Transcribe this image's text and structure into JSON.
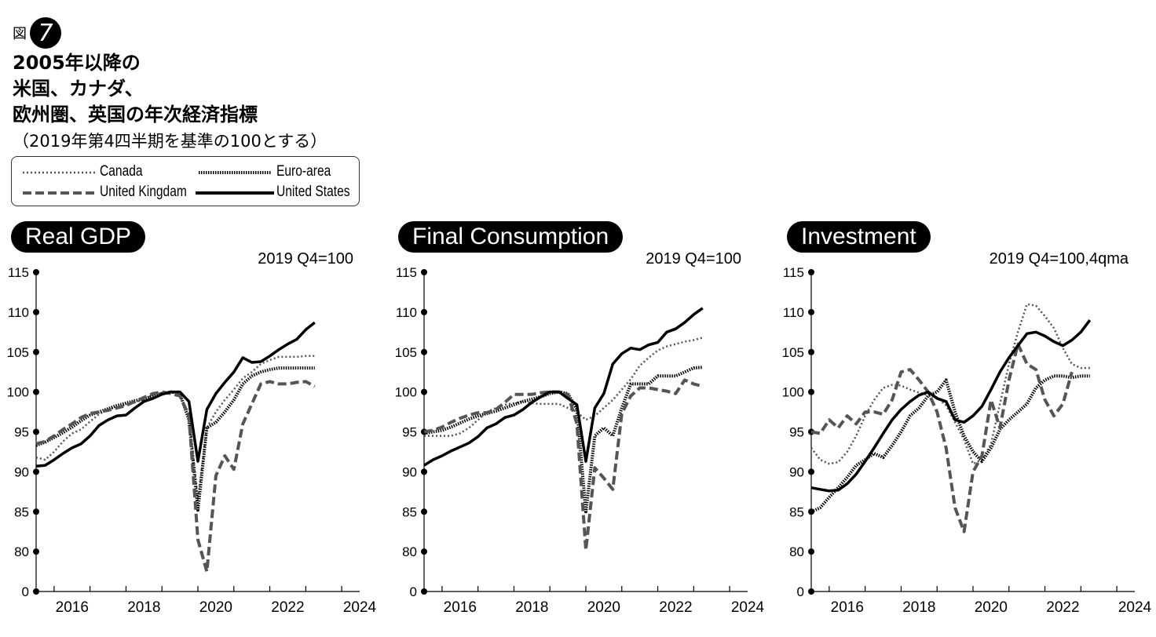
{
  "figure": {
    "prefix": "図",
    "number": "7",
    "title_lines": [
      "2005年以降の",
      "米国、カナダ、",
      "欧州圏、英国の年次経済指標"
    ],
    "subtitle": "（2019年第4四半期を基準の100とする）"
  },
  "legend": [
    {
      "name": "Canada",
      "style": "dotted",
      "color": "#555555"
    },
    {
      "name": "Euro-area",
      "style": "dense-dotted",
      "color": "#000000"
    },
    {
      "name": "United Kingdam",
      "style": "dashed",
      "color": "#555555"
    },
    {
      "name": "United States",
      "style": "solid",
      "color": "#000000"
    }
  ],
  "chart_data": [
    {
      "type": "line",
      "title": "Real GDP",
      "note": "2019 Q4=100",
      "ylim": [
        0,
        115
      ],
      "yticks": [
        0,
        80,
        85,
        90,
        95,
        100,
        105,
        110,
        115
      ],
      "xticks": [
        "2016",
        "2018",
        "2020",
        "2022",
        "2024"
      ],
      "xlim": [
        2015.5,
        2024.5
      ],
      "series": [
        {
          "name": "United States",
          "x": [
            2015.5,
            2015.75,
            2016,
            2016.25,
            2016.5,
            2016.75,
            2017,
            2017.25,
            2017.5,
            2017.75,
            2018,
            2018.25,
            2018.5,
            2018.75,
            2019,
            2019.25,
            2019.5,
            2019.75,
            2020,
            2020.25,
            2020.5,
            2020.75,
            2021,
            2021.25,
            2021.5,
            2021.75,
            2022,
            2022.25,
            2022.5,
            2022.75,
            2023,
            2023.25,
            2023.5,
            2023.75,
            2024,
            2024.25
          ],
          "values": [
            90.7,
            90.8,
            91.5,
            92.3,
            93,
            93.5,
            94.5,
            95.8,
            96.5,
            97,
            97.1,
            98,
            98.8,
            99.2,
            99.7,
            100,
            100,
            98.8,
            91.3,
            97.8,
            99.8,
            101.2,
            102.5,
            104.3,
            103.7,
            103.8,
            104.5,
            105.3,
            106,
            106.6,
            107.8,
            108.7,
            null,
            null,
            null,
            null
          ]
        },
        {
          "name": "Canada",
          "x": [
            2015.5,
            2015.75,
            2016,
            2016.25,
            2016.5,
            2016.75,
            2017,
            2017.25,
            2017.5,
            2017.75,
            2018,
            2018.25,
            2018.5,
            2018.75,
            2019,
            2019.25,
            2019.5,
            2019.75,
            2020,
            2020.25,
            2020.5,
            2020.75,
            2021,
            2021.25,
            2021.5,
            2021.75,
            2022,
            2022.25,
            2022.5,
            2022.75,
            2023,
            2023.25,
            2023.5,
            2023.75,
            2024,
            2024.25
          ],
          "values": [
            91.8,
            91.5,
            92.5,
            93.8,
            94.8,
            95.3,
            96.3,
            97.2,
            97.8,
            98.1,
            98.4,
            98.7,
            99.1,
            99.6,
            99.9,
            100,
            99.5,
            97.3,
            86.5,
            95.5,
            97.5,
            99,
            100.3,
            101.7,
            102.5,
            103.5,
            104,
            104.4,
            104.4,
            104.4,
            104.5,
            104.5,
            null,
            null,
            null,
            null
          ]
        },
        {
          "name": "Euro-area",
          "x": [
            2015.5,
            2015.75,
            2016,
            2016.25,
            2016.5,
            2016.75,
            2017,
            2017.25,
            2017.5,
            2017.75,
            2018,
            2018.25,
            2018.5,
            2018.75,
            2019,
            2019.25,
            2019.5,
            2019.75,
            2020,
            2020.25,
            2020.5,
            2020.75,
            2021,
            2021.25,
            2021.5,
            2021.75,
            2022,
            2022.25,
            2022.5,
            2022.75,
            2023,
            2023.25,
            2023.5,
            2023.75,
            2024,
            2024.25
          ],
          "values": [
            93.3,
            93.7,
            94.3,
            94.9,
            95.6,
            96.4,
            97.1,
            97.5,
            97.9,
            98.3,
            98.6,
            98.9,
            99.1,
            99.5,
            99.8,
            100,
            99.8,
            96.5,
            85.2,
            95.5,
            96.2,
            97.5,
            99,
            101,
            102,
            102.5,
            102.8,
            103,
            103,
            103,
            103,
            103,
            null,
            null,
            null,
            null
          ]
        },
        {
          "name": "United Kingdam",
          "x": [
            2015.5,
            2015.75,
            2016,
            2016.25,
            2016.5,
            2016.75,
            2017,
            2017.25,
            2017.5,
            2017.75,
            2018,
            2018.25,
            2018.5,
            2018.75,
            2019,
            2019.25,
            2019.5,
            2019.75,
            2020,
            2020.25,
            2020.5,
            2020.75,
            2021,
            2021.25,
            2021.5,
            2021.75,
            2022,
            2022.25,
            2022.5,
            2022.75,
            2023,
            2023.25,
            2023.5,
            2023.75,
            2024,
            2024.25
          ],
          "values": [
            93.5,
            93.8,
            94.5,
            95.3,
            96,
            96.8,
            97.3,
            97.5,
            97.7,
            98,
            98.3,
            98.8,
            99.3,
            99.8,
            100,
            99.8,
            99.5,
            97,
            81.5,
            77.5,
            89.5,
            92,
            90.3,
            96,
            98.5,
            101,
            101.3,
            101,
            101,
            101.2,
            101.3,
            100.7,
            null,
            null,
            null,
            null
          ]
        }
      ]
    },
    {
      "type": "line",
      "title": "Final Consumption",
      "note": "2019 Q4=100",
      "ylim": [
        0,
        115
      ],
      "yticks": [
        0,
        80,
        85,
        90,
        95,
        100,
        105,
        110,
        115
      ],
      "xticks": [
        "2016",
        "2018",
        "2020",
        "2022",
        "2024"
      ],
      "xlim": [
        2015.5,
        2024.5
      ],
      "series": [
        {
          "name": "United States",
          "x": [
            2015.5,
            2015.75,
            2016,
            2016.25,
            2016.5,
            2016.75,
            2017,
            2017.25,
            2017.5,
            2017.75,
            2018,
            2018.25,
            2018.5,
            2018.75,
            2019,
            2019.25,
            2019.5,
            2019.75,
            2020,
            2020.25,
            2020.5,
            2020.75,
            2021,
            2021.25,
            2021.5,
            2021.75,
            2022,
            2022.25,
            2022.5,
            2022.75,
            2023,
            2023.25,
            2023.5,
            2023.75,
            2024,
            2024.25
          ],
          "values": [
            90.8,
            91.5,
            92,
            92.6,
            93.1,
            93.6,
            94.4,
            95.5,
            96,
            96.8,
            97.1,
            97.8,
            98.7,
            99.4,
            100,
            100,
            99.2,
            98.4,
            91.3,
            98,
            99.8,
            103.5,
            104.8,
            105.5,
            105.3,
            105.9,
            106.2,
            107.5,
            107.9,
            108.7,
            109.7,
            110.5,
            null,
            null,
            null,
            null
          ]
        },
        {
          "name": "Canada",
          "x": [
            2015.5,
            2015.75,
            2016,
            2016.25,
            2016.5,
            2016.75,
            2017,
            2017.25,
            2017.5,
            2017.75,
            2018,
            2018.25,
            2018.5,
            2018.75,
            2019,
            2019.25,
            2019.5,
            2019.75,
            2020,
            2020.25,
            2020.5,
            2020.75,
            2021,
            2021.25,
            2021.5,
            2021.75,
            2022,
            2022.25,
            2022.5,
            2022.75,
            2023,
            2023.25,
            2023.5,
            2023.75,
            2024,
            2024.25
          ],
          "values": [
            94.5,
            94.5,
            94.5,
            94.5,
            94.8,
            95.5,
            96.5,
            97.5,
            98,
            98.4,
            98.6,
            98.8,
            98.6,
            98.5,
            98.5,
            98.5,
            98,
            97.5,
            96.5,
            97,
            98,
            99,
            100.3,
            101.6,
            103.3,
            104.3,
            105.2,
            105.7,
            106,
            106.3,
            106.5,
            106.8,
            null,
            null,
            null,
            null
          ]
        },
        {
          "name": "Euro-area",
          "x": [
            2015.5,
            2015.75,
            2016,
            2016.25,
            2016.5,
            2016.75,
            2017,
            2017.25,
            2017.5,
            2017.75,
            2018,
            2018.25,
            2018.5,
            2018.75,
            2019,
            2019.25,
            2019.5,
            2019.75,
            2020,
            2020.25,
            2020.5,
            2020.75,
            2021,
            2021.25,
            2021.5,
            2021.75,
            2022,
            2022.25,
            2022.5,
            2022.75,
            2023,
            2023.25,
            2023.5,
            2023.75,
            2024,
            2024.25
          ],
          "values": [
            94.8,
            95,
            95.2,
            95.6,
            96.1,
            96.6,
            97,
            97.3,
            97.6,
            98,
            98.4,
            98.8,
            99.1,
            99.4,
            99.8,
            100,
            99.8,
            97.8,
            85,
            94.5,
            95.5,
            94.5,
            98,
            101,
            101,
            101,
            102,
            102,
            102,
            102.5,
            103,
            103.1,
            null,
            null,
            null,
            null
          ]
        },
        {
          "name": "United Kingdam",
          "x": [
            2015.5,
            2015.75,
            2016,
            2016.25,
            2016.5,
            2016.75,
            2017,
            2017.25,
            2017.5,
            2017.75,
            2018,
            2018.25,
            2018.5,
            2018.75,
            2019,
            2019.25,
            2019.5,
            2019.75,
            2020,
            2020.25,
            2020.5,
            2020.75,
            2021,
            2021.25,
            2021.5,
            2021.75,
            2022,
            2022.25,
            2022.5,
            2022.75,
            2023,
            2023.25,
            2023.5,
            2023.75,
            2024,
            2024.25
          ],
          "values": [
            95,
            95.2,
            95.6,
            96.2,
            96.7,
            97.1,
            97.4,
            97.4,
            97.8,
            98.7,
            99.7,
            99.7,
            99.7,
            99.9,
            100,
            100,
            99.7,
            96,
            80.2,
            90.5,
            89.2,
            87.8,
            97.3,
            99.5,
            100.5,
            100.5,
            100.3,
            100.1,
            99.8,
            101.5,
            101,
            100.7,
            null,
            null,
            null,
            null
          ]
        }
      ]
    },
    {
      "type": "line",
      "title": "Investment",
      "note": "2019 Q4=100,4qma",
      "ylim": [
        0,
        115
      ],
      "yticks": [
        0,
        80,
        85,
        90,
        95,
        100,
        105,
        110,
        115
      ],
      "xticks": [
        "2016",
        "2018",
        "2020",
        "2022",
        "2024"
      ],
      "xlim": [
        2015.5,
        2024.5
      ],
      "series": [
        {
          "name": "United States",
          "x": [
            2015.5,
            2015.75,
            2016,
            2016.25,
            2016.5,
            2016.75,
            2017,
            2017.25,
            2017.5,
            2017.75,
            2018,
            2018.25,
            2018.5,
            2018.75,
            2019,
            2019.25,
            2019.5,
            2019.75,
            2020,
            2020.25,
            2020.5,
            2020.75,
            2021,
            2021.25,
            2021.5,
            2021.75,
            2022,
            2022.25,
            2022.5,
            2022.75,
            2023,
            2023.25,
            2023.5,
            2023.75,
            2024,
            2024.25
          ],
          "values": [
            88,
            87.8,
            87.6,
            87.7,
            88.5,
            89.7,
            91.3,
            93,
            94.8,
            96.5,
            97.8,
            98.8,
            99.6,
            100,
            99.2,
            98.8,
            96.5,
            96.2,
            97,
            98.2,
            100.3,
            102.5,
            104.3,
            105.8,
            107.3,
            107.5,
            107,
            106.3,
            105.8,
            106.5,
            107.5,
            109,
            null,
            null,
            null,
            null
          ]
        },
        {
          "name": "Canada",
          "x": [
            2015.5,
            2015.75,
            2016,
            2016.25,
            2016.5,
            2016.75,
            2017,
            2017.25,
            2017.5,
            2017.75,
            2018,
            2018.25,
            2018.5,
            2018.75,
            2019,
            2019.25,
            2019.5,
            2019.75,
            2020,
            2020.25,
            2020.5,
            2020.75,
            2021,
            2021.25,
            2021.5,
            2021.75,
            2022,
            2022.25,
            2022.5,
            2022.75,
            2023,
            2023.25,
            2023.5,
            2023.75,
            2024,
            2024.25
          ],
          "values": [
            93,
            91.5,
            91,
            91.2,
            92.5,
            94.5,
            97,
            99,
            100.5,
            100.9,
            100.8,
            100.3,
            99.9,
            99.6,
            99.3,
            98.3,
            96.2,
            94,
            91,
            91.5,
            93.5,
            98.5,
            103.5,
            107.5,
            111,
            110.8,
            109.5,
            108,
            105.5,
            103.5,
            103,
            103,
            null,
            null,
            null,
            null
          ]
        },
        {
          "name": "Euro-area",
          "x": [
            2015.5,
            2015.75,
            2016,
            2016.25,
            2016.5,
            2016.75,
            2017,
            2017.25,
            2017.5,
            2017.75,
            2018,
            2018.25,
            2018.5,
            2018.75,
            2019,
            2019.25,
            2019.5,
            2019.75,
            2020,
            2020.25,
            2020.5,
            2020.75,
            2021,
            2021.25,
            2021.5,
            2021.75,
            2022,
            2022.25,
            2022.5,
            2022.75,
            2023,
            2023.25,
            2023.5,
            2023.75,
            2024,
            2024.25
          ],
          "values": [
            85,
            85.5,
            86.8,
            88,
            89.3,
            90.8,
            91.5,
            92.3,
            91.8,
            93.3,
            95,
            97,
            98,
            99.5,
            100,
            101.5,
            97.5,
            94.5,
            92.5,
            91.3,
            93,
            95.3,
            96.5,
            97.5,
            98.5,
            100.5,
            101.5,
            102,
            102,
            101.8,
            102,
            102,
            null,
            null,
            null,
            null
          ]
        },
        {
          "name": "United Kingdam",
          "x": [
            2015.5,
            2015.75,
            2016,
            2016.25,
            2016.5,
            2016.75,
            2017,
            2017.25,
            2017.5,
            2017.75,
            2018,
            2018.25,
            2018.5,
            2018.75,
            2019,
            2019.25,
            2019.5,
            2019.75,
            2020,
            2020.25,
            2020.5,
            2020.75,
            2021,
            2021.25,
            2021.5,
            2021.75,
            2022,
            2022.25,
            2022.5,
            2022.75,
            2023,
            2023.25,
            2023.5,
            2023.75,
            2024,
            2024.25
          ],
          "values": [
            95,
            94.8,
            96.5,
            95.5,
            97,
            96,
            97.5,
            97.5,
            97.2,
            99,
            102.5,
            102.8,
            101.5,
            100,
            97.5,
            93,
            85.5,
            82.5,
            90,
            92,
            99,
            95.5,
            101.5,
            106,
            103.5,
            102.8,
            99,
            97,
            98.5,
            102.5,
            null,
            null,
            null,
            null,
            null,
            null
          ]
        }
      ]
    }
  ]
}
